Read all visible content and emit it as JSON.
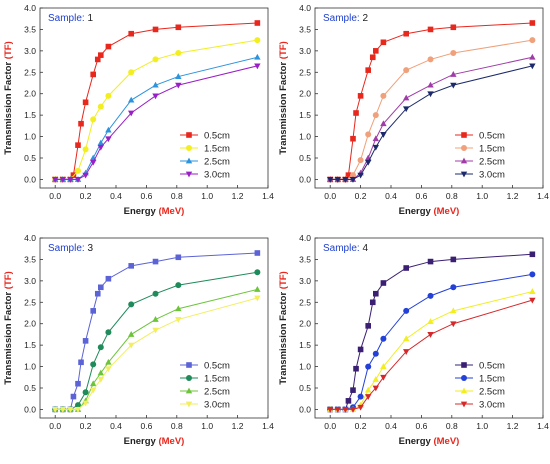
{
  "chart_data": [
    {
      "type": "line",
      "sample_label": "Sample:",
      "sample_number": "1",
      "xlabel": "Energy",
      "xlabel_unit": "(MeV)",
      "ylabel": "Transmission Factor",
      "ylabel_unit": "(TF)",
      "xlim": [
        -0.1,
        1.4
      ],
      "ylim": [
        -0.2,
        4.0
      ],
      "xticks": [
        "0.0",
        "0.2",
        "0.4",
        "0.6",
        "0.8",
        "1.0",
        "1.2",
        "1.4"
      ],
      "yticks": [
        "0.0",
        "0.5",
        "1.0",
        "1.5",
        "2.0",
        "2.5",
        "3.0",
        "3.5",
        "4.0"
      ],
      "legend_position": "bottom-right",
      "series": [
        {
          "name": "0.5cm",
          "color": "#e8271d",
          "marker": "square",
          "x": [
            0.0,
            0.05,
            0.1,
            0.12,
            0.15,
            0.17,
            0.2,
            0.25,
            0.28,
            0.3,
            0.35,
            0.5,
            0.66,
            0.81,
            1.33
          ],
          "y": [
            0.0,
            0.0,
            0.0,
            0.1,
            0.8,
            1.3,
            1.8,
            2.45,
            2.8,
            2.9,
            3.1,
            3.4,
            3.5,
            3.55,
            3.65
          ]
        },
        {
          "name": "1.5cm",
          "color": "#f2ee1f",
          "marker": "circle",
          "x": [
            0.0,
            0.05,
            0.1,
            0.15,
            0.2,
            0.25,
            0.3,
            0.35,
            0.5,
            0.66,
            0.81,
            1.33
          ],
          "y": [
            0.0,
            0.0,
            0.0,
            0.2,
            0.7,
            1.4,
            1.7,
            1.95,
            2.5,
            2.8,
            2.95,
            3.25
          ]
        },
        {
          "name": "2.5cm",
          "color": "#2c93de",
          "marker": "triangle-up",
          "x": [
            0.0,
            0.05,
            0.1,
            0.15,
            0.2,
            0.25,
            0.3,
            0.35,
            0.5,
            0.66,
            0.81,
            1.33
          ],
          "y": [
            0.0,
            0.0,
            0.0,
            0.0,
            0.15,
            0.5,
            0.85,
            1.15,
            1.85,
            2.2,
            2.4,
            2.85
          ]
        },
        {
          "name": "3.0cm",
          "color": "#9a1fc6",
          "marker": "triangle-down",
          "x": [
            0.0,
            0.05,
            0.1,
            0.15,
            0.2,
            0.25,
            0.3,
            0.35,
            0.5,
            0.66,
            0.81,
            1.33
          ],
          "y": [
            0.0,
            0.0,
            0.0,
            0.0,
            0.1,
            0.4,
            0.75,
            0.95,
            1.55,
            1.95,
            2.2,
            2.65
          ]
        }
      ]
    },
    {
      "type": "line",
      "sample_label": "Sample:",
      "sample_number": "2",
      "xlabel": "Energy",
      "xlabel_unit": "(MeV)",
      "ylabel": "Transmission Factor",
      "ylabel_unit": "(TF)",
      "xlim": [
        -0.1,
        1.4
      ],
      "ylim": [
        -0.2,
        4.0
      ],
      "xticks": [
        "0.0",
        "0.2",
        "0.4",
        "0.6",
        "0.8",
        "1.0",
        "1.2",
        "1.4"
      ],
      "yticks": [
        "0.0",
        "0.5",
        "1.0",
        "1.5",
        "2.0",
        "2.5",
        "3.0",
        "3.5",
        "4.0"
      ],
      "legend_position": "bottom-right",
      "series": [
        {
          "name": "0.5cm",
          "color": "#e8271d",
          "marker": "square",
          "x": [
            0.0,
            0.05,
            0.1,
            0.12,
            0.15,
            0.17,
            0.2,
            0.25,
            0.28,
            0.3,
            0.35,
            0.5,
            0.66,
            0.81,
            1.33
          ],
          "y": [
            0.0,
            0.0,
            0.0,
            0.1,
            0.95,
            1.55,
            1.95,
            2.55,
            2.85,
            3.0,
            3.2,
            3.4,
            3.5,
            3.55,
            3.65
          ]
        },
        {
          "name": "1.5cm",
          "color": "#f0a07a",
          "marker": "circle",
          "x": [
            0.0,
            0.05,
            0.1,
            0.15,
            0.2,
            0.25,
            0.3,
            0.35,
            0.5,
            0.66,
            0.81,
            1.33
          ],
          "y": [
            0.0,
            0.0,
            0.0,
            0.1,
            0.45,
            1.05,
            1.5,
            1.95,
            2.55,
            2.8,
            2.95,
            3.25
          ]
        },
        {
          "name": "2.5cm",
          "color": "#a03ca8",
          "marker": "triangle-up",
          "x": [
            0.0,
            0.05,
            0.1,
            0.15,
            0.2,
            0.25,
            0.3,
            0.35,
            0.5,
            0.66,
            0.81,
            1.33
          ],
          "y": [
            0.0,
            0.0,
            0.0,
            0.0,
            0.15,
            0.5,
            0.95,
            1.3,
            1.9,
            2.2,
            2.45,
            2.85
          ]
        },
        {
          "name": "3.0cm",
          "color": "#1c2a6b",
          "marker": "triangle-down",
          "x": [
            0.0,
            0.05,
            0.1,
            0.15,
            0.2,
            0.25,
            0.3,
            0.35,
            0.5,
            0.66,
            0.81,
            1.33
          ],
          "y": [
            0.0,
            0.0,
            0.0,
            0.0,
            0.1,
            0.4,
            0.75,
            1.05,
            1.65,
            2.0,
            2.2,
            2.65
          ]
        }
      ]
    },
    {
      "type": "line",
      "sample_label": "Sample:",
      "sample_number": "3",
      "xlabel": "Energy",
      "xlabel_unit": "(MeV)",
      "ylabel": "Transmission Factor",
      "ylabel_unit": "(TF)",
      "xlim": [
        -0.1,
        1.4
      ],
      "ylim": [
        -0.2,
        4.0
      ],
      "xticks": [
        "0.0",
        "0.2",
        "0.4",
        "0.6",
        "0.8",
        "1.0",
        "1.2",
        "1.4"
      ],
      "yticks": [
        "0.0",
        "0.5",
        "1.0",
        "1.5",
        "2.0",
        "2.5",
        "3.0",
        "3.5",
        "4.0"
      ],
      "legend_position": "bottom-right",
      "series": [
        {
          "name": "0.5cm",
          "color": "#5b63d6",
          "marker": "square",
          "x": [
            0.0,
            0.05,
            0.1,
            0.12,
            0.15,
            0.17,
            0.2,
            0.25,
            0.28,
            0.3,
            0.35,
            0.5,
            0.66,
            0.81,
            1.33
          ],
          "y": [
            0.0,
            0.0,
            0.0,
            0.3,
            0.6,
            1.1,
            1.6,
            2.3,
            2.7,
            2.85,
            3.05,
            3.35,
            3.45,
            3.55,
            3.65
          ]
        },
        {
          "name": "1.5cm",
          "color": "#1f8a5a",
          "marker": "circle",
          "x": [
            0.0,
            0.05,
            0.1,
            0.15,
            0.2,
            0.25,
            0.3,
            0.35,
            0.5,
            0.66,
            0.81,
            1.33
          ],
          "y": [
            0.0,
            0.0,
            0.0,
            0.1,
            0.4,
            1.05,
            1.45,
            1.8,
            2.45,
            2.7,
            2.9,
            3.2
          ]
        },
        {
          "name": "2.5cm",
          "color": "#6cc43a",
          "marker": "triangle-up",
          "x": [
            0.0,
            0.05,
            0.1,
            0.15,
            0.2,
            0.25,
            0.3,
            0.35,
            0.5,
            0.66,
            0.81,
            1.33
          ],
          "y": [
            0.0,
            0.0,
            0.0,
            0.0,
            0.2,
            0.6,
            0.85,
            1.1,
            1.75,
            2.1,
            2.35,
            2.8
          ]
        },
        {
          "name": "3.0cm",
          "color": "#f2ee5e",
          "marker": "triangle-down",
          "x": [
            0.0,
            0.05,
            0.1,
            0.15,
            0.2,
            0.25,
            0.3,
            0.35,
            0.5,
            0.66,
            0.81,
            1.33
          ],
          "y": [
            0.0,
            0.0,
            0.0,
            0.0,
            0.15,
            0.45,
            0.7,
            0.95,
            1.5,
            1.85,
            2.1,
            2.6
          ]
        }
      ]
    },
    {
      "type": "line",
      "sample_label": "Sample:",
      "sample_number": "4",
      "xlabel": "Energy",
      "xlabel_unit": "(MeV)",
      "ylabel": "Transmission Factor",
      "ylabel_unit": "(TF)",
      "xlim": [
        -0.1,
        1.4
      ],
      "ylim": [
        -0.2,
        4.0
      ],
      "xticks": [
        "0.0",
        "0.2",
        "0.4",
        "0.6",
        "0.8",
        "1.0",
        "1.2",
        "1.4"
      ],
      "yticks": [
        "0.0",
        "0.5",
        "1.0",
        "1.5",
        "2.0",
        "2.5",
        "3.0",
        "3.5",
        "4.0"
      ],
      "legend_position": "bottom-right",
      "series": [
        {
          "name": "0.5cm",
          "color": "#3a1f73",
          "marker": "square",
          "x": [
            0.0,
            0.05,
            0.1,
            0.12,
            0.15,
            0.17,
            0.2,
            0.25,
            0.28,
            0.3,
            0.35,
            0.5,
            0.66,
            0.81,
            1.33
          ],
          "y": [
            0.0,
            0.0,
            0.0,
            0.2,
            0.45,
            0.95,
            1.4,
            1.95,
            2.5,
            2.7,
            2.95,
            3.3,
            3.45,
            3.5,
            3.62
          ]
        },
        {
          "name": "1.5cm",
          "color": "#2340d8",
          "marker": "circle",
          "x": [
            0.0,
            0.05,
            0.1,
            0.15,
            0.2,
            0.25,
            0.3,
            0.35,
            0.5,
            0.66,
            0.81,
            1.33
          ],
          "y": [
            0.0,
            0.0,
            0.0,
            0.05,
            0.3,
            1.0,
            1.3,
            1.65,
            2.3,
            2.65,
            2.85,
            3.15
          ]
        },
        {
          "name": "2.5cm",
          "color": "#f2ee1f",
          "marker": "triangle-up",
          "x": [
            0.0,
            0.05,
            0.1,
            0.15,
            0.2,
            0.25,
            0.3,
            0.35,
            0.5,
            0.66,
            0.81,
            1.33
          ],
          "y": [
            0.0,
            0.0,
            0.0,
            0.0,
            0.1,
            0.45,
            0.7,
            1.0,
            1.65,
            2.05,
            2.3,
            2.75
          ]
        },
        {
          "name": "3.0cm",
          "color": "#d6282a",
          "marker": "triangle-down",
          "x": [
            0.0,
            0.05,
            0.1,
            0.15,
            0.2,
            0.25,
            0.3,
            0.35,
            0.5,
            0.66,
            0.81,
            1.33
          ],
          "y": [
            0.0,
            0.0,
            0.0,
            0.0,
            0.05,
            0.3,
            0.5,
            0.75,
            1.35,
            1.75,
            2.0,
            2.55
          ]
        }
      ]
    }
  ]
}
